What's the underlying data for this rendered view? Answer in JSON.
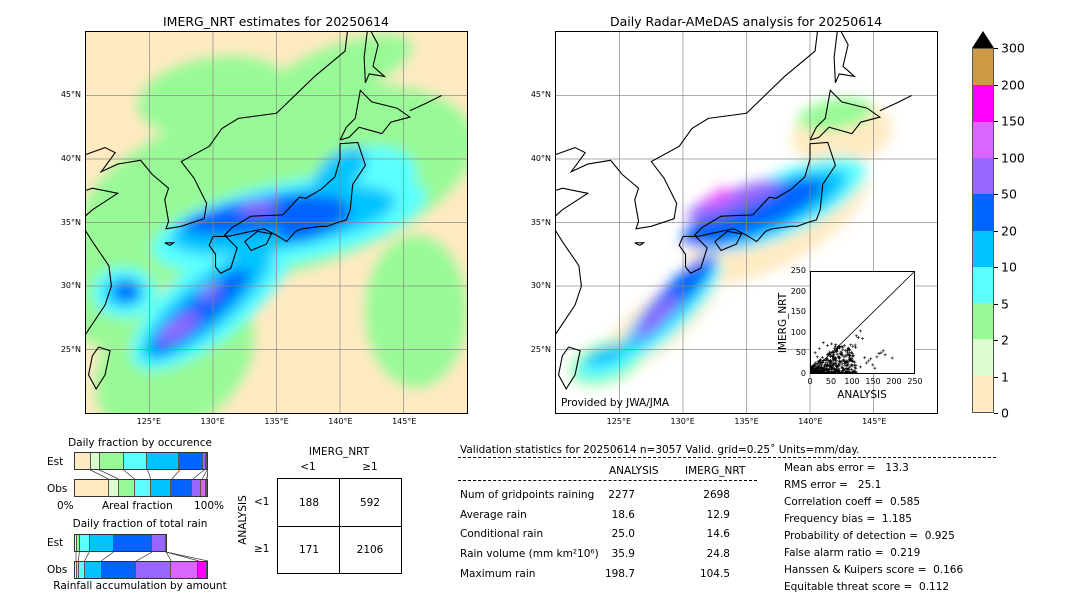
{
  "left_map": {
    "title": "IMERG_NRT estimates for 20250614",
    "lat_ticks": [
      "45°N",
      "40°N",
      "35°N",
      "30°N",
      "25°N"
    ],
    "lon_ticks": [
      "125°E",
      "130°E",
      "135°E",
      "140°E",
      "145°E"
    ],
    "extent": {
      "lon": [
        120,
        150
      ],
      "lat": [
        20,
        50
      ]
    }
  },
  "right_map": {
    "title": "Daily Radar-AMeDAS analysis for 20250614",
    "lat_ticks": [
      "45°N",
      "40°N",
      "35°N",
      "30°N",
      "25°N"
    ],
    "lon_ticks": [
      "125°E",
      "130°E",
      "135°E",
      "140°E",
      "145°E"
    ],
    "credit": "Provided by JWA/JMA",
    "extent": {
      "lon": [
        120,
        150
      ],
      "lat": [
        20,
        50
      ]
    }
  },
  "colorbar": {
    "labels": [
      "0",
      "1",
      "2",
      "5",
      "10",
      "20",
      "50",
      "100",
      "150",
      "200",
      "300"
    ],
    "colors": [
      "#ffeac2",
      "#ddfccf",
      "#98fa96",
      "#5cffff",
      "#00c4ff",
      "#0064ff",
      "#9966ff",
      "#da66ff",
      "#ff00ff",
      "#cc9944"
    ],
    "extend_color": "#000000"
  },
  "scatter": {
    "xlabel": "ANALYSIS",
    "ylabel": "IMERG_NRT",
    "ticks": [
      "0",
      "50",
      "100",
      "150",
      "200",
      "250"
    ]
  },
  "occurrence": {
    "title": "Daily fraction by occurence",
    "est_label": "Est",
    "obs_label": "Obs",
    "xlabel": "Areal fraction",
    "left_label": "0%",
    "right_label": "100%"
  },
  "total_rain": {
    "title": "Daily fraction of total rain",
    "est_label": "Est",
    "obs_label": "Obs",
    "xlabel": "Rainfall accumulation by amount"
  },
  "contingency": {
    "col_title": "IMERG_NRT",
    "row_title": "ANALYSIS",
    "col_labels": [
      "<1",
      "≥1"
    ],
    "row_labels": [
      "<1",
      "≥1"
    ],
    "cells": [
      [
        "188",
        "592"
      ],
      [
        "171",
        "2106"
      ]
    ]
  },
  "stats": {
    "header": "Validation statistics for 20250614  n=3057 Valid. grid=0.25˚ Units=mm/day.",
    "col_headers": [
      "ANALYSIS",
      "IMERG_NRT"
    ],
    "rows": [
      {
        "label": "Num of gridpoints raining",
        "analysis": "2277",
        "imerg": "2698"
      },
      {
        "label": "Average rain",
        "analysis": "18.6",
        "imerg": "12.9"
      },
      {
        "label": "Conditional rain",
        "analysis": "25.0",
        "imerg": "14.6"
      },
      {
        "label": "Rain volume (mm km²10⁶)",
        "analysis": "35.9",
        "imerg": "24.8"
      },
      {
        "label": "Maximum rain",
        "analysis": "198.7",
        "imerg": "104.5"
      }
    ],
    "scores": [
      "Mean abs error =   13.3",
      "RMS error =   25.1",
      "Correlation coeff =  0.585",
      "Frequency bias =  1.185",
      "Probability of detection =  0.925",
      "False alarm ratio =  0.219",
      "Hanssen & Kuipers score =  0.166",
      "Equitable threat score =  0.112"
    ]
  },
  "chart_data": [
    {
      "type": "scatter",
      "title": "",
      "xlabel": "ANALYSIS",
      "ylabel": "IMERG_NRT",
      "xlim": [
        0,
        250
      ],
      "ylim": [
        0,
        250
      ],
      "reference_line": "y=x",
      "marker": "+",
      "sample_points": [
        [
          120,
          104
        ],
        [
          110,
          92
        ],
        [
          115,
          88
        ],
        [
          125,
          85
        ],
        [
          175,
          55
        ],
        [
          165,
          48
        ],
        [
          170,
          50
        ],
        [
          180,
          45
        ],
        [
          197,
          37
        ],
        [
          150,
          20
        ],
        [
          155,
          12
        ],
        [
          140,
          30
        ],
        [
          130,
          38
        ],
        [
          100,
          48
        ],
        [
          90,
          60
        ],
        [
          80,
          40
        ],
        [
          70,
          65
        ],
        [
          60,
          70
        ],
        [
          50,
          72
        ],
        [
          40,
          68
        ],
        [
          30,
          75
        ],
        [
          20,
          60
        ],
        [
          15,
          40
        ],
        [
          10,
          25
        ],
        [
          5,
          10
        ],
        [
          25,
          15
        ],
        [
          35,
          20
        ],
        [
          45,
          10
        ],
        [
          60,
          25
        ],
        [
          75,
          15
        ],
        [
          90,
          10
        ],
        [
          105,
          20
        ],
        [
          120,
          15
        ],
        [
          135,
          25
        ],
        [
          145,
          35
        ],
        [
          160,
          40
        ],
        [
          10,
          50
        ],
        [
          20,
          30
        ],
        [
          40,
          45
        ],
        [
          55,
          50
        ]
      ]
    },
    {
      "type": "bar",
      "title": "Daily fraction by occurence",
      "xlabel": "Areal fraction",
      "categories": [
        "0-1",
        "1-2",
        "2-5",
        "5-10",
        "10-20",
        "20-50",
        "50-100",
        "100-150",
        "150-200"
      ],
      "series": [
        {
          "name": "Est",
          "values": [
            0.122,
            0.068,
            0.18,
            0.18,
            0.24,
            0.18,
            0.025,
            0.005,
            0
          ]
        },
        {
          "name": "Obs",
          "values": [
            0.2575,
            0.075,
            0.12,
            0.12,
            0.1575,
            0.1575,
            0.0675,
            0.035,
            0.01
          ]
        }
      ]
    },
    {
      "type": "bar",
      "title": "Daily fraction of total rain",
      "xlabel": "Rainfall accumulation by amount",
      "categories": [
        "1-2",
        "2-5",
        "5-10",
        "10-20",
        "20-50",
        "50-100",
        "100-150",
        "150-200"
      ],
      "series": [
        {
          "name": "Est",
          "values": [
            0.015,
            0.025,
            0.075,
            0.18,
            0.2875,
            0.105,
            0,
            0
          ]
        },
        {
          "name": "Obs",
          "values": [
            0.015,
            0.0175,
            0.045,
            0.125,
            0.2625,
            0.26,
            0.2075,
            0.0675
          ]
        }
      ]
    }
  ]
}
